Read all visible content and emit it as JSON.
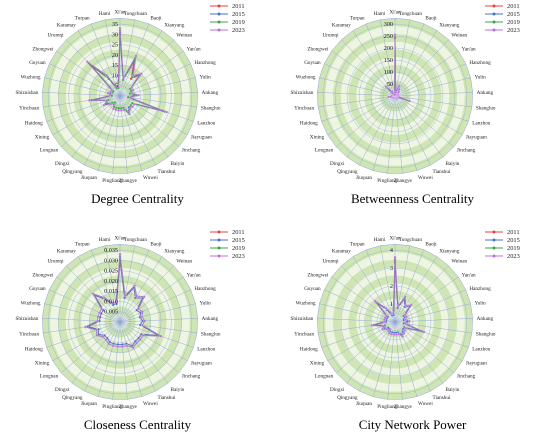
{
  "cities": [
    "Xi'an",
    "Tongchuan",
    "Baoji",
    "Xianyang",
    "Weinan",
    "Yan'an",
    "Hanzhong",
    "Yulin",
    "Ankang",
    "Shangluo",
    "Lanzhou",
    "Jiayuguan",
    "Jinchang",
    "Baiyin",
    "Tianshui",
    "Wuwei",
    "Zhangye",
    "Pingliang",
    "Jiuquan",
    "Qingyang",
    "Dingxi",
    "Longnan",
    "Xining",
    "Haidong",
    "Yinchuan",
    "Shizuishan",
    "Wuzhong",
    "Guyuan",
    "Zhongwei",
    "Urumqi",
    "Karamay",
    "Turpan",
    "Hami"
  ],
  "legend": [
    "2011",
    "2015",
    "2019",
    "2023"
  ],
  "colors": {
    "2011": "#e8413c",
    "2015": "#4a6fd0",
    "2019": "#3aa64a",
    "2023": "#b870e0",
    "area_light": "#eef5e2",
    "area_dark": "#cfe6b4",
    "web": "#8fa6d6"
  },
  "chart_data": [
    {
      "type": "radar",
      "title": "Degree Centrality",
      "ylim": [
        0,
        35
      ],
      "ticks": [
        "0",
        "5",
        "10",
        "15",
        "20",
        "25",
        "30",
        "35"
      ],
      "series": [
        {
          "name": "2011",
          "values": [
            30,
            8,
            18,
            10,
            14,
            6,
            6,
            5,
            8,
            4,
            22,
            7,
            7,
            7,
            9,
            6,
            6,
            6,
            6,
            6,
            4,
            5,
            8,
            6,
            14,
            4,
            5,
            4,
            4,
            20,
            10,
            4,
            4
          ]
        },
        {
          "name": "2015",
          "values": [
            31,
            8,
            19,
            11,
            14,
            6,
            6,
            5,
            8,
            4,
            22,
            7,
            7,
            7,
            9,
            6,
            6,
            6,
            6,
            6,
            4,
            5,
            8,
            6,
            14,
            4,
            5,
            4,
            4,
            21,
            10,
            4,
            4
          ]
        },
        {
          "name": "2019",
          "values": [
            32,
            8,
            20,
            11,
            15,
            6,
            6,
            5,
            8,
            4,
            23,
            7,
            7,
            8,
            9,
            6,
            6,
            6,
            6,
            6,
            4,
            5,
            9,
            6,
            15,
            4,
            5,
            4,
            4,
            22,
            11,
            4,
            4
          ]
        },
        {
          "name": "2023",
          "values": [
            33,
            9,
            21,
            12,
            15,
            7,
            7,
            6,
            9,
            5,
            24,
            8,
            8,
            8,
            10,
            7,
            7,
            7,
            7,
            7,
            5,
            6,
            9,
            7,
            15,
            5,
            6,
            5,
            5,
            23,
            12,
            5,
            5
          ]
        }
      ]
    },
    {
      "type": "radar",
      "title": "Betweenness Centrality",
      "ylim": [
        0,
        300
      ],
      "ticks": [
        "0",
        "50",
        "100",
        "150",
        "200",
        "250",
        "300"
      ],
      "series": [
        {
          "name": "2011",
          "values": [
            240,
            15,
            40,
            30,
            20,
            10,
            12,
            8,
            10,
            8,
            60,
            8,
            8,
            10,
            12,
            8,
            8,
            8,
            8,
            8,
            5,
            8,
            10,
            6,
            25,
            5,
            6,
            5,
            5,
            50,
            20,
            5,
            5
          ]
        },
        {
          "name": "2015",
          "values": [
            245,
            15,
            40,
            30,
            20,
            10,
            12,
            8,
            10,
            8,
            60,
            8,
            8,
            10,
            12,
            8,
            8,
            8,
            8,
            8,
            5,
            8,
            10,
            6,
            25,
            5,
            6,
            5,
            5,
            50,
            20,
            5,
            5
          ]
        },
        {
          "name": "2019",
          "values": [
            250,
            15,
            42,
            30,
            20,
            10,
            12,
            8,
            10,
            8,
            62,
            8,
            8,
            10,
            12,
            8,
            8,
            8,
            8,
            8,
            5,
            8,
            10,
            6,
            26,
            5,
            6,
            5,
            5,
            52,
            20,
            5,
            5
          ]
        },
        {
          "name": "2023",
          "values": [
            255,
            16,
            44,
            32,
            22,
            11,
            13,
            9,
            11,
            9,
            64,
            9,
            9,
            11,
            13,
            9,
            9,
            9,
            9,
            9,
            6,
            9,
            11,
            7,
            27,
            6,
            7,
            6,
            6,
            54,
            22,
            6,
            6
          ]
        }
      ]
    },
    {
      "type": "radar",
      "title": "Closeness Centrality",
      "ylim": [
        0,
        0.035
      ],
      "ticks": [
        "0",
        "0.005",
        "0.010",
        "0.015",
        "0.020",
        "0.025",
        "0.030",
        "0.035"
      ],
      "series": [
        {
          "name": "2011",
          "values": [
            0.03,
            0.012,
            0.018,
            0.014,
            0.016,
            0.01,
            0.011,
            0.01,
            0.011,
            0.01,
            0.02,
            0.012,
            0.012,
            0.012,
            0.013,
            0.011,
            0.011,
            0.011,
            0.011,
            0.011,
            0.01,
            0.01,
            0.012,
            0.011,
            0.016,
            0.01,
            0.01,
            0.01,
            0.01,
            0.018,
            0.013,
            0.009,
            0.009
          ]
        },
        {
          "name": "2015",
          "values": [
            0.031,
            0.012,
            0.018,
            0.014,
            0.016,
            0.01,
            0.011,
            0.01,
            0.011,
            0.01,
            0.02,
            0.012,
            0.012,
            0.012,
            0.013,
            0.011,
            0.011,
            0.011,
            0.011,
            0.011,
            0.01,
            0.01,
            0.012,
            0.011,
            0.016,
            0.01,
            0.01,
            0.01,
            0.01,
            0.018,
            0.013,
            0.009,
            0.009
          ]
        },
        {
          "name": "2019",
          "values": [
            0.032,
            0.013,
            0.019,
            0.015,
            0.017,
            0.011,
            0.012,
            0.011,
            0.012,
            0.011,
            0.021,
            0.013,
            0.013,
            0.013,
            0.014,
            0.012,
            0.012,
            0.012,
            0.012,
            0.012,
            0.011,
            0.011,
            0.013,
            0.012,
            0.017,
            0.011,
            0.011,
            0.011,
            0.011,
            0.019,
            0.014,
            0.01,
            0.01
          ]
        },
        {
          "name": "2023",
          "values": [
            0.033,
            0.013,
            0.019,
            0.015,
            0.017,
            0.011,
            0.012,
            0.011,
            0.012,
            0.011,
            0.021,
            0.013,
            0.013,
            0.013,
            0.014,
            0.012,
            0.012,
            0.012,
            0.012,
            0.012,
            0.011,
            0.011,
            0.013,
            0.012,
            0.017,
            0.011,
            0.011,
            0.011,
            0.011,
            0.019,
            0.014,
            0.01,
            0.01
          ]
        }
      ]
    },
    {
      "type": "radar",
      "title": "City Network Power",
      "ylim": [
        0,
        4
      ],
      "ticks": [
        "0",
        "1",
        "2",
        "3",
        "4"
      ],
      "series": [
        {
          "name": "2011",
          "values": [
            3.3,
            0.8,
            1.4,
            1.0,
            1.2,
            0.6,
            0.6,
            0.5,
            0.7,
            0.5,
            1.6,
            0.6,
            0.6,
            0.7,
            0.8,
            0.6,
            0.6,
            0.6,
            0.6,
            0.6,
            0.5,
            0.5,
            0.7,
            0.6,
            1.2,
            0.5,
            0.5,
            0.5,
            0.5,
            1.5,
            0.8,
            0.4,
            0.4
          ]
        },
        {
          "name": "2015",
          "values": [
            3.4,
            0.8,
            1.4,
            1.0,
            1.2,
            0.6,
            0.6,
            0.5,
            0.7,
            0.5,
            1.6,
            0.6,
            0.6,
            0.7,
            0.8,
            0.6,
            0.6,
            0.6,
            0.6,
            0.6,
            0.5,
            0.5,
            0.7,
            0.6,
            1.2,
            0.5,
            0.5,
            0.5,
            0.5,
            1.5,
            0.8,
            0.4,
            0.4
          ]
        },
        {
          "name": "2019",
          "values": [
            3.5,
            0.9,
            1.5,
            1.1,
            1.3,
            0.7,
            0.7,
            0.6,
            0.8,
            0.6,
            1.7,
            0.7,
            0.7,
            0.8,
            0.9,
            0.7,
            0.7,
            0.7,
            0.7,
            0.7,
            0.6,
            0.6,
            0.8,
            0.7,
            1.3,
            0.6,
            0.6,
            0.6,
            0.6,
            1.6,
            0.9,
            0.5,
            0.5
          ]
        },
        {
          "name": "2023",
          "values": [
            3.6,
            0.9,
            1.5,
            1.1,
            1.3,
            0.7,
            0.7,
            0.6,
            0.8,
            0.6,
            1.7,
            0.7,
            0.7,
            0.8,
            0.9,
            0.7,
            0.7,
            0.7,
            0.7,
            0.7,
            0.6,
            0.6,
            0.8,
            0.7,
            1.3,
            0.6,
            0.6,
            0.6,
            0.6,
            1.6,
            0.9,
            0.5,
            0.5
          ]
        }
      ]
    }
  ]
}
